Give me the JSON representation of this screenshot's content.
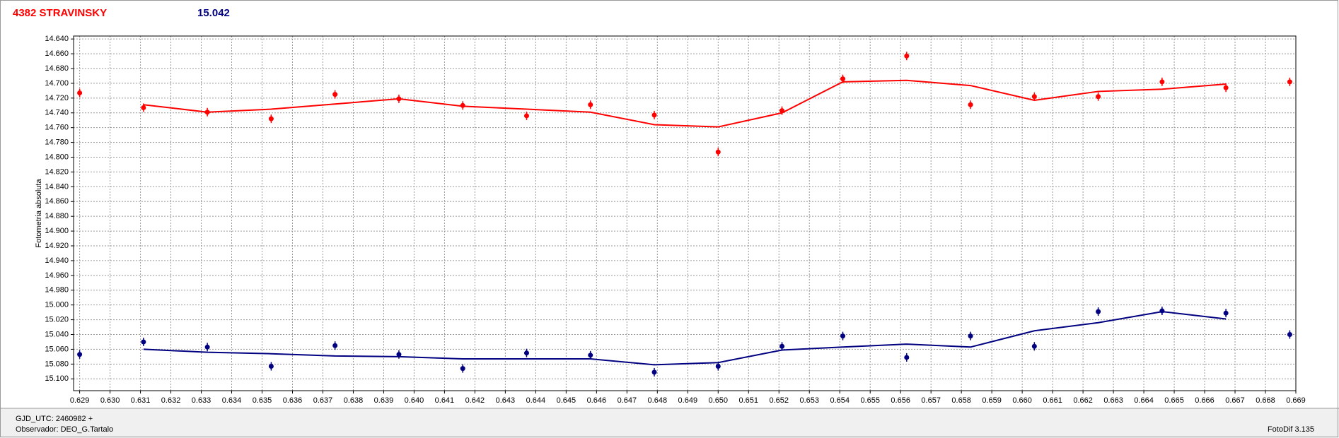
{
  "chart_data": {
    "type": "scatter",
    "title": "4382 STRAVINSKY",
    "subtitle": "15.042",
    "y_label": "Fotometria absoluta",
    "footer": {
      "gjd": "GJD_UTC: 2460982 +",
      "observer": "Observador: DEO_G.Tartalo",
      "software": "FotoDif 3.135"
    },
    "xlim": [
      0.6288,
      0.669
    ],
    "ylim": [
      14.636,
      15.116
    ],
    "y_inverted": true,
    "grid": true,
    "xticks": [
      0.629,
      {
        "value": 0.63,
        "label": "0.630"
      },
      0.631,
      0.632,
      0.633,
      0.634,
      0.635,
      0.636,
      0.637,
      0.638,
      0.639,
      {
        "value": 0.64,
        "label": "0.640"
      },
      0.641,
      0.642,
      0.643,
      0.644,
      0.645,
      0.646,
      0.647,
      0.648,
      0.649,
      {
        "value": 0.65,
        "label": "0.650"
      },
      0.651,
      0.652,
      0.653,
      0.654,
      0.655,
      0.656,
      0.657,
      0.658,
      0.659,
      {
        "value": 0.66,
        "label": "0.660"
      },
      0.661,
      0.662,
      0.663,
      0.664,
      0.665,
      0.666,
      0.667,
      0.668,
      0.669
    ],
    "yticks": [
      {
        "value": 14.64,
        "label": "14.640"
      },
      {
        "value": 14.66,
        "label": "14.660"
      },
      {
        "value": 14.68,
        "label": "14.680"
      },
      {
        "value": 14.7,
        "label": "14.700"
      },
      {
        "value": 14.72,
        "label": "14.720"
      },
      {
        "value": 14.74,
        "label": "14.740"
      },
      {
        "value": 14.76,
        "label": "14.760"
      },
      {
        "value": 14.78,
        "label": "14.780"
      },
      {
        "value": 14.8,
        "label": "14.800"
      },
      {
        "value": 14.82,
        "label": "14.820"
      },
      {
        "value": 14.84,
        "label": "14.840"
      },
      {
        "value": 14.86,
        "label": "14.860"
      },
      {
        "value": 14.88,
        "label": "14.880"
      },
      {
        "value": 14.9,
        "label": "14.900"
      },
      {
        "value": 14.92,
        "label": "14.920"
      },
      {
        "value": 14.94,
        "label": "14.940"
      },
      {
        "value": 14.96,
        "label": "14.960"
      },
      {
        "value": 14.98,
        "label": "14.980"
      },
      {
        "value": 15.0,
        "label": "15.000"
      },
      {
        "value": 15.02,
        "label": "15.020"
      },
      {
        "value": 15.04,
        "label": "15.040"
      },
      {
        "value": 15.06,
        "label": "15.060"
      },
      {
        "value": 15.08,
        "label": "15.080"
      },
      {
        "value": 15.1,
        "label": "15.100"
      }
    ],
    "x": [
      0.629,
      0.6311,
      0.6332,
      0.6353,
      0.6374,
      0.6395,
      0.6416,
      0.6437,
      0.6458,
      0.6479,
      0.65,
      0.6521,
      0.6541,
      0.6562,
      0.6583,
      0.6604,
      0.6625,
      0.6646,
      0.6667,
      0.6688
    ],
    "fit_x": [
      0.6311,
      0.6332,
      0.6353,
      0.6374,
      0.6395,
      0.6416,
      0.6437,
      0.6458,
      0.6479,
      0.65,
      0.6521,
      0.6541,
      0.6562,
      0.6583,
      0.6604,
      0.6625,
      0.6646,
      0.6667
    ],
    "series": [
      {
        "color": "#ff0000",
        "values": [
          14.713,
          14.733,
          14.739,
          14.748,
          14.715,
          14.721,
          14.73,
          14.744,
          14.729,
          14.743,
          14.793,
          14.737,
          14.694,
          14.663,
          14.729,
          14.718,
          14.718,
          14.698,
          14.706,
          14.698
        ],
        "fit": [
          14.729,
          14.739,
          14.735,
          14.728,
          14.721,
          14.731,
          14.735,
          14.739,
          14.756,
          14.759,
          14.74,
          14.698,
          14.696,
          14.703,
          14.723,
          14.711,
          14.708,
          14.701
        ]
      },
      {
        "color": "#000080",
        "values": [
          15.067,
          15.05,
          15.057,
          15.083,
          15.055,
          15.067,
          15.086,
          15.065,
          15.068,
          15.091,
          15.083,
          15.056,
          15.042,
          15.071,
          15.042,
          15.056,
          15.009,
          15.008,
          15.011,
          15.04
        ],
        "fit": [
          15.06,
          15.064,
          15.066,
          15.069,
          15.07,
          15.073,
          15.073,
          15.073,
          15.081,
          15.078,
          15.061,
          15.057,
          15.053,
          15.057,
          15.035,
          15.024,
          15.009,
          15.019
        ]
      }
    ]
  }
}
